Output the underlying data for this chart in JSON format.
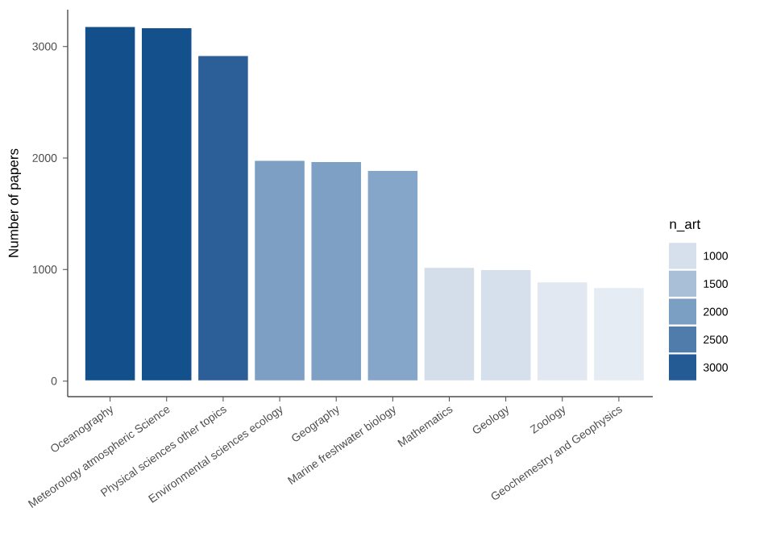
{
  "chart_data": {
    "type": "bar",
    "categories": [
      "Oceanography",
      "Meteorology atmospheric Science",
      "Physical sciences other topics",
      "Environmental sciences ecology",
      "Geography",
      "Marine freshwater biology",
      "Mathematics",
      "Geology",
      "Zoology",
      "Geochemestry and Geophysics"
    ],
    "values": [
      3180,
      3170,
      2920,
      1980,
      1970,
      1890,
      1020,
      1000,
      890,
      840
    ],
    "colors": [
      "#13508b",
      "#14518c",
      "#2c5f98",
      "#7d9fc4",
      "#7ea0c5",
      "#86a6c9",
      "#d3deea",
      "#d6e0ec",
      "#e1e8f1",
      "#e6ecf4"
    ],
    "ylabel": "Number of papers",
    "ylim": [
      -140,
      3330
    ],
    "yticks": [
      0,
      1000,
      2000,
      3000
    ],
    "clabel": "n_art",
    "cticks": [
      1000,
      1500,
      2000,
      2500,
      3000
    ],
    "grid": false
  }
}
